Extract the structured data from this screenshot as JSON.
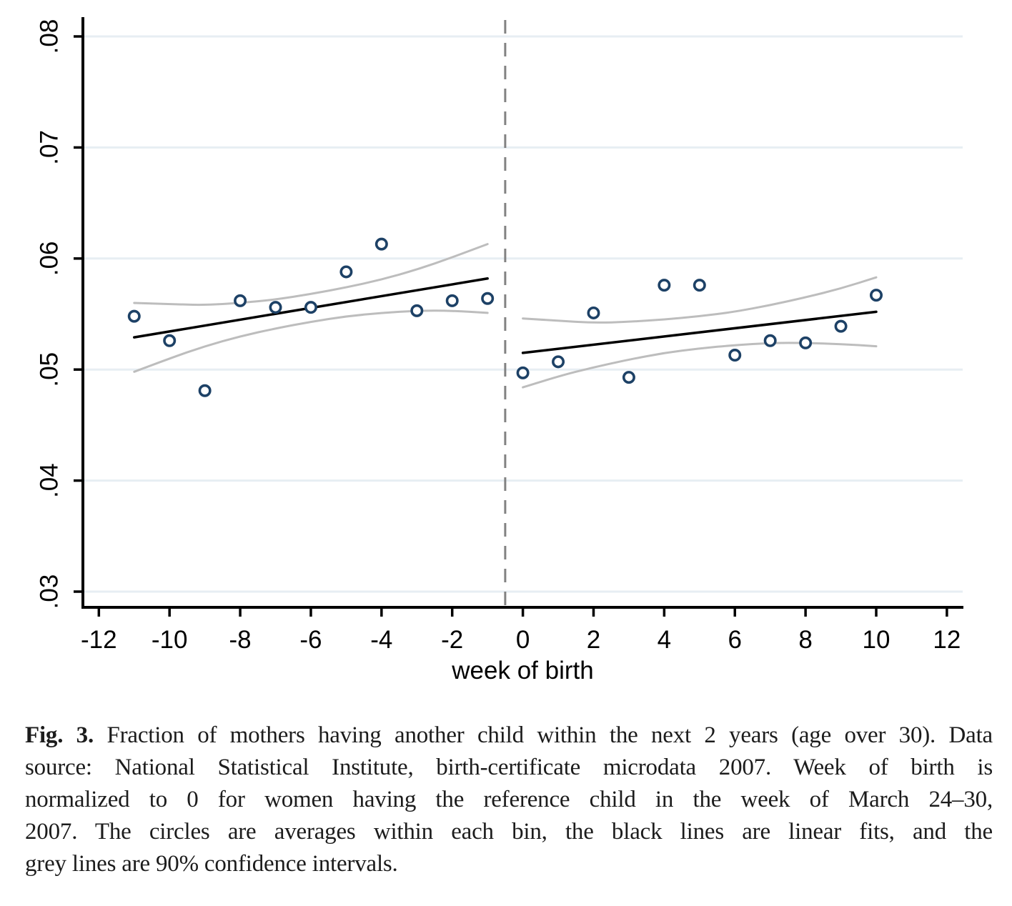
{
  "figure": {
    "caption": {
      "label": "Fig. 3.",
      "line1_rest": "Fraction of mothers having another child within the next 2 years (age over 30). Data",
      "lines": [
        "source: National Statistical Institute, birth-certificate microdata 2007. Week of birth is",
        "normalized to 0 for women having the reference child in the week of March 24–30,",
        "2007. The circles are averages within each bin, the black lines are linear fits, and the",
        "grey lines are 90% confidence intervals."
      ]
    }
  },
  "chart_data": {
    "type": "scatter",
    "title": "",
    "xlabel": "week of birth",
    "ylabel": "",
    "xlim": [
      -12.5,
      12.5
    ],
    "ylim": [
      0.0286,
      0.0815
    ],
    "x_ticks": [
      -12,
      -10,
      -8,
      -6,
      -4,
      -2,
      0,
      2,
      4,
      6,
      8,
      10,
      12
    ],
    "x_tick_labels": [
      "-12",
      "-10",
      "-8",
      "-6",
      "-4",
      "-2",
      "0",
      "2",
      "4",
      "6",
      "8",
      "10",
      "12"
    ],
    "y_ticks": [
      0.03,
      0.04,
      0.05,
      0.06,
      0.07,
      0.08
    ],
    "y_tick_labels": [
      ".03",
      ".04",
      ".05",
      ".06",
      ".07",
      ".08"
    ],
    "grid": true,
    "legend": "none",
    "cutoff_x": -0.5,
    "series": [
      {
        "name": "bin-averages-pre-cutoff",
        "role": "scatter",
        "x": [
          -11,
          -10,
          -9,
          -8,
          -7,
          -6,
          -5,
          -4,
          -3,
          -2,
          -1
        ],
        "y": [
          0.0548,
          0.0526,
          0.0481,
          0.0562,
          0.0556,
          0.0556,
          0.0588,
          0.0613,
          0.0553,
          0.0562,
          0.0564
        ]
      },
      {
        "name": "bin-averages-post-cutoff",
        "role": "scatter",
        "x": [
          0,
          1,
          2,
          3,
          4,
          5,
          6,
          7,
          8,
          9,
          10
        ],
        "y": [
          0.0497,
          0.0507,
          0.0551,
          0.0493,
          0.0576,
          0.0576,
          0.0513,
          0.0526,
          0.0524,
          0.0539,
          0.0567
        ]
      },
      {
        "name": "linear-fit-pre-cutoff",
        "role": "fit",
        "x": [
          -11,
          -1
        ],
        "y": [
          0.0529,
          0.0582
        ]
      },
      {
        "name": "linear-fit-post-cutoff",
        "role": "fit",
        "x": [
          0,
          10
        ],
        "y": [
          0.0515,
          0.0552
        ]
      },
      {
        "name": "ci90-upper-pre-cutoff",
        "role": "ci",
        "x": [
          -11,
          -10,
          -9,
          -8,
          -7,
          -6,
          -5,
          -4,
          -3,
          -2,
          -1
        ],
        "y": [
          0.056,
          0.0559,
          0.0558,
          0.056,
          0.0563,
          0.0568,
          0.0574,
          0.0581,
          0.059,
          0.0601,
          0.0613
        ]
      },
      {
        "name": "ci90-lower-pre-cutoff",
        "role": "ci",
        "x": [
          -11,
          -10,
          -9,
          -8,
          -7,
          -6,
          -5,
          -4,
          -3,
          -2,
          -1
        ],
        "y": [
          0.0498,
          0.051,
          0.0521,
          0.053,
          0.0537,
          0.0543,
          0.0548,
          0.0551,
          0.0553,
          0.0553,
          0.0551
        ]
      },
      {
        "name": "ci90-upper-post-cutoff",
        "role": "ci",
        "x": [
          0,
          1,
          2,
          3,
          4,
          5,
          6,
          7,
          8,
          9,
          10
        ],
        "y": [
          0.0546,
          0.0544,
          0.0542,
          0.0543,
          0.0545,
          0.0548,
          0.0552,
          0.0558,
          0.0565,
          0.0573,
          0.0583
        ]
      },
      {
        "name": "ci90-lower-post-cutoff",
        "role": "ci",
        "x": [
          0,
          1,
          2,
          3,
          4,
          5,
          6,
          7,
          8,
          9,
          10
        ],
        "y": [
          0.0484,
          0.0494,
          0.0502,
          0.0509,
          0.0515,
          0.0519,
          0.0522,
          0.0524,
          0.0524,
          0.0523,
          0.0521
        ]
      }
    ],
    "colors": {
      "marker": "#1d4166",
      "fit_line": "#000000",
      "ci_line": "#bdbdbd",
      "gridline": "#e7eef3",
      "cutoff_line": "#828282",
      "axis": "#000000",
      "background": "#ffffff"
    }
  }
}
